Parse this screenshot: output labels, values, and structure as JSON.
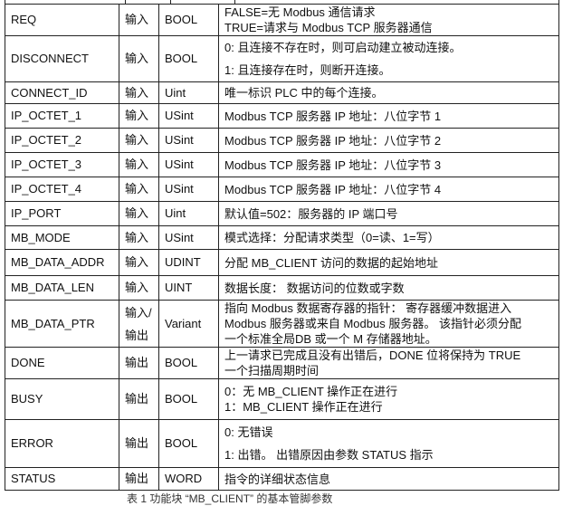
{
  "rows": [
    {
      "name": "REQ",
      "dir": "输入",
      "type": "BOOL",
      "desc": [
        "FALSE=无 Modbus 通信请求",
        "TRUE=请求与 Modbus TCP 服务器通信"
      ]
    },
    {
      "name": "DISCONNECT",
      "dir": "输入",
      "type": "BOOL",
      "desc": [
        "0: 且连接不存在时，则可启动建立被动连接。",
        "1: 且连接存在时，则断开连接。"
      ]
    },
    {
      "name": "CONNECT_ID",
      "dir": "输入",
      "type": "Uint",
      "desc": [
        "唯一标识 PLC 中的每个连接。"
      ]
    },
    {
      "name": "IP_OCTET_1",
      "dir": "输入",
      "type": "USint",
      "desc": [
        "Modbus TCP 服务器 IP 地址：八位字节 1"
      ]
    },
    {
      "name": "IP_OCTET_2",
      "dir": "输入",
      "type": "USint",
      "desc": [
        "Modbus TCP 服务器 IP 地址：八位字节 2"
      ]
    },
    {
      "name": "IP_OCTET_3",
      "dir": "输入",
      "type": "USint",
      "desc": [
        "Modbus TCP 服务器 IP 地址：八位字节 3"
      ]
    },
    {
      "name": "IP_OCTET_4",
      "dir": "输入",
      "type": "USint",
      "desc": [
        "Modbus TCP 服务器 IP 地址：八位字节 4"
      ]
    },
    {
      "name": "IP_PORT",
      "dir": "输入",
      "type": "Uint",
      "desc": [
        "默认值=502：服务器的 IP 端口号"
      ]
    },
    {
      "name": "MB_MODE",
      "dir": "输入",
      "type": "USint",
      "desc": [
        "模式选择：分配请求类型（0=读、1=写）"
      ]
    },
    {
      "name": "MB_DATA_ADDR",
      "dir": "输入",
      "type": "UDINT",
      "desc": [
        "分配 MB_CLIENT 访问的数据的起始地址"
      ]
    },
    {
      "name": "MB_DATA_LEN",
      "dir": "输入",
      "type": "UINT",
      "desc": [
        "数据长度： 数据访问的位数或字数"
      ]
    },
    {
      "name": "MB_DATA_PTR",
      "dir": "输入/输出",
      "type": "Variant",
      "desc": [
        "指向 Modbus 数据寄存器的指针： 寄存器缓冲数据进入",
        "Modbus 服务器或来自 Modbus 服务器。 该指针必须分配",
        "一个标准全局DB 或一个 M 存储器地址。"
      ]
    },
    {
      "name": "DONE",
      "dir": "输出",
      "type": "BOOL",
      "desc": [
        "上一请求已完成且没有出错后，DONE 位将保持为 TRUE",
        "一个扫描周期时间"
      ]
    },
    {
      "name": "BUSY",
      "dir": "输出",
      "type": "BOOL",
      "desc": [
        "0：无 MB_CLIENT 操作正在进行",
        "1：MB_CLIENT 操作正在进行"
      ]
    },
    {
      "name": "ERROR",
      "dir": "输出",
      "type": "BOOL",
      "desc": [
        "0: 无错误",
        "1: 出错。 出错原因由参数 STATUS 指示"
      ]
    },
    {
      "name": "STATUS",
      "dir": "输出",
      "type": "WORD",
      "desc": [
        "指令的详细状态信息"
      ]
    }
  ],
  "caption": "表 1 功能块 “MB_CLIENT” 的基本管脚参数"
}
